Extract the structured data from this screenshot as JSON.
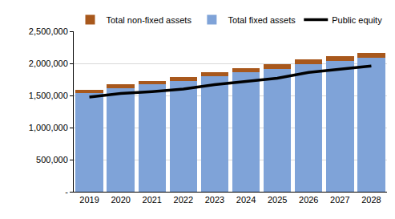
{
  "chart_data": {
    "type": "bar",
    "stacked": true,
    "categories": [
      "2019",
      "2020",
      "2021",
      "2022",
      "2023",
      "2024",
      "2025",
      "2026",
      "2027",
      "2028"
    ],
    "series": [
      {
        "name": "Total fixed assets",
        "type": "bar",
        "color": "#7fa3d8",
        "values": [
          1535000,
          1610000,
          1670000,
          1720000,
          1795000,
          1865000,
          1915000,
          1990000,
          2040000,
          2085000
        ]
      },
      {
        "name": "Total non-fixed assets",
        "type": "bar",
        "color": "#a8581c",
        "values": [
          55000,
          60000,
          60000,
          65000,
          65000,
          65000,
          70000,
          70000,
          70000,
          75000
        ]
      },
      {
        "name": "Public equity",
        "type": "line",
        "color": "#000000",
        "line_style": "solid",
        "values": [
          1475000,
          1530000,
          1560000,
          1600000,
          1670000,
          1720000,
          1770000,
          1860000,
          1910000,
          1960000
        ]
      }
    ],
    "ylim": [
      0,
      2500000
    ],
    "yticks": [
      {
        "value": 0,
        "label": "-"
      },
      {
        "value": 500000,
        "label": "500,000"
      },
      {
        "value": 1000000,
        "label": "1,000,000"
      },
      {
        "value": 1500000,
        "label": "1,500,000"
      },
      {
        "value": 2000000,
        "label": "2,000,000"
      },
      {
        "value": 2500000,
        "label": "2,500,000"
      }
    ],
    "grid": true,
    "legend": "top"
  }
}
